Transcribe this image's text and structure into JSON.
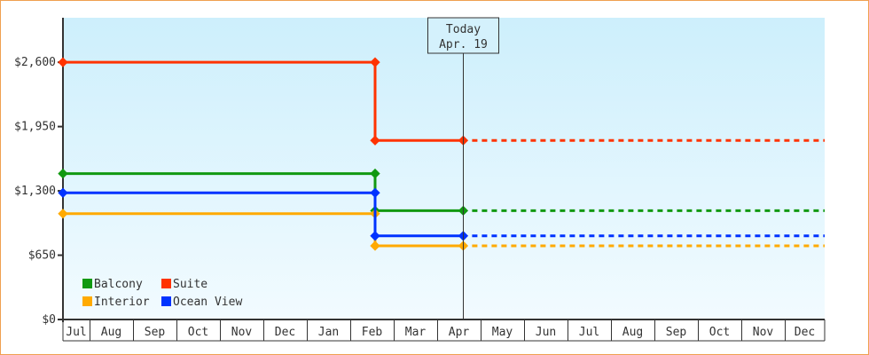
{
  "chart_data": {
    "type": "line",
    "step": true,
    "title": "",
    "xlabel": "",
    "ylabel": "",
    "ylim": [
      0,
      3050
    ],
    "y_ticks": [
      "$0",
      "$650",
      "$1,300",
      "$1,950",
      "$2,600"
    ],
    "y_tick_values": [
      0,
      650,
      1300,
      1950,
      2600
    ],
    "x_ticks": [
      "Jul",
      "Aug",
      "Sep",
      "Oct",
      "Nov",
      "Dec",
      "Jan",
      "Feb",
      "Mar",
      "Apr",
      "May",
      "Jun",
      "Jul",
      "Aug",
      "Sep",
      "Oct",
      "Nov",
      "Dec"
    ],
    "x_range": [
      "Jul 13",
      "Dec 28"
    ],
    "today": {
      "label": "Today",
      "date_label": "Apr. 19",
      "date": "Apr 19"
    },
    "grid": false,
    "legend_placement": "bottom-left",
    "series": [
      {
        "name": "Balcony",
        "color": "#119911",
        "points": [
          [
            "Jul 13",
            1475
          ],
          [
            "Feb 17",
            1475
          ],
          [
            "Feb 17",
            1100
          ],
          [
            "Apr 19",
            1100
          ]
        ],
        "projected": 1100
      },
      {
        "name": "Suite",
        "color": "#ff3300",
        "points": [
          [
            "Jul 13",
            2600
          ],
          [
            "Feb 17",
            2600
          ],
          [
            "Feb 17",
            1810
          ],
          [
            "Apr 19",
            1810
          ]
        ],
        "projected": 1810
      },
      {
        "name": "Interior",
        "color": "#ffaa00",
        "points": [
          [
            "Jul 13",
            1070
          ],
          [
            "Feb 17",
            1070
          ],
          [
            "Feb 17",
            745
          ],
          [
            "Apr 19",
            745
          ]
        ],
        "projected": 745
      },
      {
        "name": "Ocean View",
        "color": "#0033ff",
        "points": [
          [
            "Jul 13",
            1280
          ],
          [
            "Feb 17",
            1280
          ],
          [
            "Feb 17",
            845
          ],
          [
            "Apr 19",
            845
          ]
        ],
        "projected": 845
      }
    ]
  }
}
